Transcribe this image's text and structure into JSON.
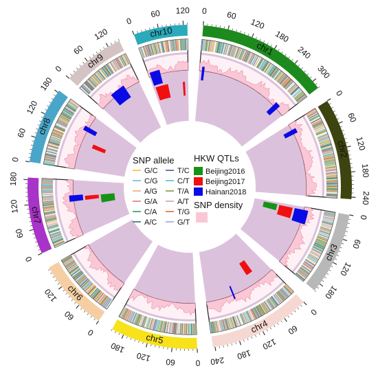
{
  "chart_data": {
    "type": "circos",
    "chromosomes": [
      {
        "name": "chr1",
        "length": 320,
        "color": "#1d8a1d",
        "ticks": [
          0,
          60,
          120,
          180,
          240,
          300
        ]
      },
      {
        "name": "chr2",
        "length": 245,
        "color": "#3d4410",
        "ticks": [
          0,
          60,
          120,
          180,
          240
        ]
      },
      {
        "name": "chr3",
        "length": 200,
        "color": "#b8b8b8",
        "ticks": [
          0,
          60,
          120,
          180
        ]
      },
      {
        "name": "chr4",
        "length": 245,
        "color": "#f6d8d2",
        "ticks": [
          0,
          60,
          120,
          180,
          240
        ]
      },
      {
        "name": "chr5",
        "length": 210,
        "color": "#f7e21b",
        "ticks": [
          0,
          60,
          120,
          180
        ]
      },
      {
        "name": "chr6",
        "length": 175,
        "color": "#f5cfa3",
        "ticks": [
          0,
          60,
          120
        ]
      },
      {
        "name": "chr7",
        "length": 185,
        "color": "#a833c8",
        "ticks": [
          0,
          60,
          120,
          180
        ]
      },
      {
        "name": "chr8",
        "length": 185,
        "color": "#4aa6c8",
        "ticks": [
          0,
          60,
          120,
          180
        ]
      },
      {
        "name": "chr9",
        "length": 150,
        "color": "#d5c3c3",
        "ticks": [
          0,
          60,
          120
        ]
      },
      {
        "name": "chr10",
        "length": 130,
        "color": "#2aaaba",
        "ticks": [
          0,
          60,
          120
        ]
      }
    ],
    "qtls": [
      {
        "series": "Hainan2018",
        "chr": "chr1",
        "start": 8,
        "end": 16
      },
      {
        "series": "Hainan2018",
        "chr": "chr1",
        "start": 275,
        "end": 292
      },
      {
        "series": "Hainan2018",
        "chr": "chr2",
        "start": 20,
        "end": 35
      },
      {
        "series": "Hainan2018",
        "chr": "chr10",
        "start": 5,
        "end": 38
      },
      {
        "series": "Beijing2017",
        "chr": "chr10",
        "start": 8,
        "end": 55
      },
      {
        "series": "Beijing2017",
        "chr": "chr10",
        "start": 110,
        "end": 118
      },
      {
        "series": "Hainan2018",
        "chr": "chr9",
        "start": 50,
        "end": 100
      },
      {
        "series": "Hainan2018",
        "chr": "chr8",
        "start": 130,
        "end": 145
      },
      {
        "series": "Beijing2017",
        "chr": "chr8",
        "start": 85,
        "end": 100
      },
      {
        "series": "Beijing2016",
        "chr": "chr7",
        "start": 95,
        "end": 130
      },
      {
        "series": "Beijing2017",
        "chr": "chr7",
        "start": 115,
        "end": 130
      },
      {
        "series": "Hainan2018",
        "chr": "chr7",
        "start": 115,
        "end": 135
      },
      {
        "series": "Beijing2016",
        "chr": "chr3",
        "start": 8,
        "end": 35
      },
      {
        "series": "Beijing2017",
        "chr": "chr3",
        "start": 10,
        "end": 50
      },
      {
        "series": "Hainan2018",
        "chr": "chr3",
        "start": 10,
        "end": 55
      },
      {
        "series": "Beijing2017",
        "chr": "chr4",
        "start": 55,
        "end": 80
      },
      {
        "series": "Hainan2018",
        "chr": "chr4",
        "start": 150,
        "end": 155
      }
    ],
    "legend": {
      "snp_allele_title": "SNP allele",
      "snp_alleles": [
        {
          "label": "G/C",
          "color": "#f2c12e"
        },
        {
          "label": "T/C",
          "color": "#4b5a8c"
        },
        {
          "label": "C/G",
          "color": "#6fb7e0"
        },
        {
          "label": "C/T",
          "color": "#3fc9c9"
        },
        {
          "label": "A/G",
          "color": "#e8a87c"
        },
        {
          "label": "T/A",
          "color": "#7a9a3a"
        },
        {
          "label": "G/A",
          "color": "#e57373"
        },
        {
          "label": "A/T",
          "color": "#c9a3a3"
        },
        {
          "label": "C/A",
          "color": "#27a05a"
        },
        {
          "label": "T/G",
          "color": "#e8662a"
        },
        {
          "label": "A/C",
          "color": "#2f6f6a"
        },
        {
          "label": "G/T",
          "color": "#b39ddb"
        }
      ],
      "qtl_title": "HKW QTLs",
      "qtl_series": [
        {
          "label": "Beijing2016",
          "color": "#169316"
        },
        {
          "label": "Beijing2017",
          "color": "#f01010"
        },
        {
          "label": "Hainan2018",
          "color": "#0a0ae6"
        }
      ],
      "density_title": "SNP density",
      "density_color": "#f9c8d6"
    },
    "qtl_track_color": "#dcc1dc",
    "snp_track_color": "#fde6ee",
    "density_line_color": "#f08aa8"
  }
}
